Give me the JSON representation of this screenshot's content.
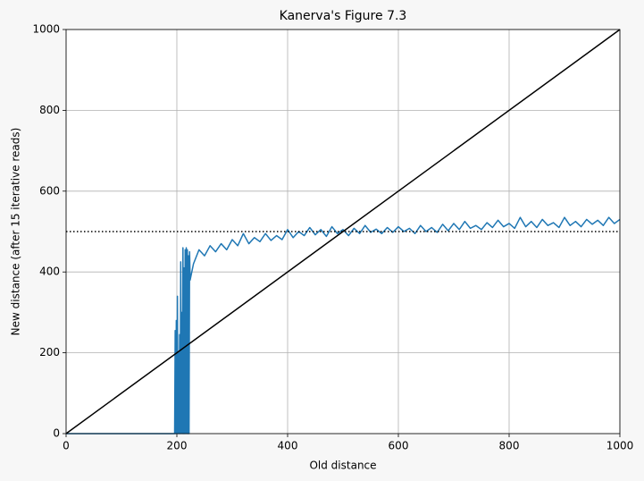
{
  "chart_data": {
    "type": "line",
    "title": "Kanerva's Figure 7.3",
    "xlabel": "Old distance",
    "ylabel": "New distance (after 15 iterative reads)",
    "xlim": [
      0,
      1000
    ],
    "ylim": [
      0,
      1000
    ],
    "xticks": [
      0,
      200,
      400,
      600,
      800,
      1000
    ],
    "yticks": [
      0,
      200,
      400,
      600,
      800,
      1000
    ],
    "grid": true,
    "series": [
      {
        "color": "#1f77b4",
        "linestyle": "solid",
        "x": [
          0,
          196,
          197,
          198,
          199,
          200,
          201,
          202,
          203,
          204,
          205,
          206,
          207,
          208,
          209,
          210,
          211,
          212,
          213,
          214,
          215,
          216,
          217,
          218,
          219,
          220,
          221,
          222,
          223,
          224,
          230,
          240,
          250,
          260,
          270,
          280,
          290,
          300,
          310,
          320,
          330,
          340,
          350,
          360,
          370,
          380,
          390,
          400,
          410,
          420,
          430,
          440,
          450,
          460,
          470,
          480,
          490,
          500,
          510,
          520,
          530,
          540,
          550,
          560,
          570,
          580,
          590,
          600,
          610,
          620,
          630,
          640,
          650,
          660,
          670,
          680,
          690,
          700,
          710,
          720,
          730,
          740,
          750,
          760,
          770,
          780,
          790,
          800,
          810,
          820,
          830,
          840,
          850,
          860,
          870,
          880,
          890,
          900,
          910,
          920,
          930,
          940,
          950,
          960,
          970,
          980,
          990,
          1000
        ],
        "values": [
          0,
          0,
          255,
          0,
          280,
          0,
          340,
          0,
          200,
          0,
          245,
          0,
          425,
          0,
          300,
          0,
          460,
          0,
          410,
          0,
          455,
          0,
          460,
          0,
          455,
          0,
          440,
          0,
          450,
          380,
          420,
          455,
          440,
          465,
          450,
          470,
          455,
          480,
          465,
          495,
          470,
          485,
          475,
          495,
          478,
          490,
          480,
          505,
          485,
          500,
          490,
          510,
          492,
          505,
          488,
          512,
          495,
          505,
          490,
          508,
          495,
          515,
          498,
          506,
          495,
          510,
          498,
          512,
          500,
          508,
          495,
          515,
          500,
          510,
          498,
          518,
          502,
          520,
          505,
          525,
          508,
          515,
          505,
          522,
          510,
          528,
          512,
          520,
          508,
          535,
          512,
          525,
          510,
          530,
          515,
          522,
          510,
          535,
          515,
          525,
          512,
          530,
          518,
          528,
          515,
          535,
          520,
          530
        ]
      },
      {
        "color": "#000000",
        "linestyle": "solid",
        "x": [
          0,
          1000
        ],
        "values": [
          0,
          1000
        ]
      },
      {
        "color": "#000000",
        "linestyle": "dotted",
        "x": [
          0,
          1000
        ],
        "values": [
          500,
          500
        ]
      }
    ]
  }
}
